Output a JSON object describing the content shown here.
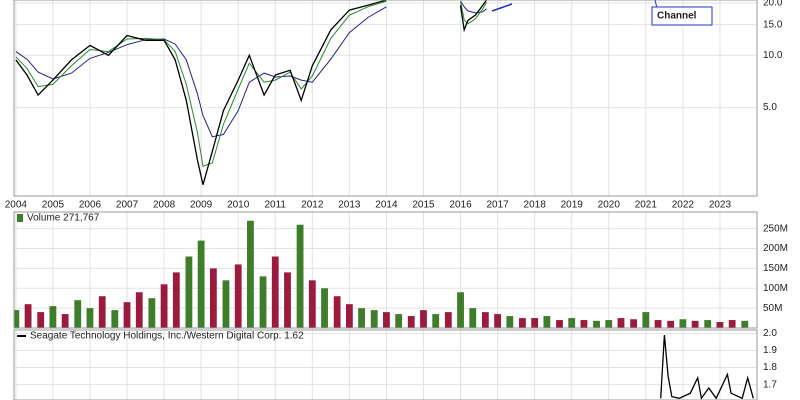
{
  "chart_data": [
    {
      "type": "line",
      "log": true,
      "grid": true,
      "annotation": "Channel",
      "xlim": [
        2003.95,
        2024.0
      ],
      "xticks": [
        2004,
        2005,
        2006,
        2007,
        2008,
        2009,
        2010,
        2011,
        2012,
        2013,
        2014,
        2015,
        2016,
        2017,
        2018,
        2019,
        2020,
        2021,
        2022,
        2023
      ],
      "ylim": [
        1.55,
        20.8
      ],
      "yticks": [
        {
          "value": 5,
          "label": "5.0"
        },
        {
          "value": 10,
          "label": "10.0"
        },
        {
          "value": 15,
          "label": "15.0"
        },
        {
          "value": 20,
          "label": "20.0"
        }
      ],
      "x": [
        2004.0,
        2004.3,
        2004.6,
        2005.0,
        2005.5,
        2006.0,
        2006.5,
        2007.0,
        2007.5,
        2008.0,
        2008.3,
        2008.6,
        2008.9,
        2009.05,
        2009.3,
        2009.6,
        2010.0,
        2010.3,
        2010.7,
        2011.0,
        2011.4,
        2011.7,
        2012.0,
        2012.5,
        2013.0,
        2013.5,
        2014.0,
        2015.0,
        2016.0,
        2016.1,
        2016.2,
        2016.4,
        2016.6,
        2016.7
      ],
      "series": [
        {
          "color": "#23238e",
          "values": [
            10.5,
            9.5,
            8,
            7.3,
            7.9,
            9.6,
            10.4,
            11.5,
            12.3,
            12.4,
            11.6,
            9.4,
            6,
            4.5,
            3.4,
            3.5,
            4.8,
            7,
            7.9,
            7.5,
            7.6,
            7.2,
            7.0,
            9.5,
            13.5,
            16.5,
            19,
            null,
            20.5,
            19,
            18,
            17.5,
            17.8,
            18.5
          ]
        },
        {
          "color": "#2a8a2a",
          "values": [
            9.8,
            8.4,
            6.6,
            6.8,
            8.7,
            10.8,
            10.5,
            12.4,
            12.5,
            12.3,
            10.5,
            6.8,
            3.6,
            2.3,
            2.4,
            4.0,
            6.4,
            9.0,
            7.0,
            7.2,
            8.0,
            6.4,
            7.6,
            12.5,
            17,
            19,
            20.5,
            null,
            20.5,
            16,
            15.2,
            16.2,
            18.5,
            20.2
          ]
        },
        {
          "color": "#000000",
          "values": [
            9.4,
            7.7,
            5.9,
            7.2,
            9.4,
            11.4,
            10,
            13,
            12.2,
            12.2,
            9.4,
            5.5,
            2.5,
            1.8,
            2.8,
            4.8,
            7.2,
            10,
            5.9,
            7.7,
            8.2,
            5.5,
            8.7,
            14,
            18.2,
            19.4,
            20.8,
            null,
            19.4,
            14,
            15.9,
            17,
            19.4,
            20.8
          ]
        }
      ]
    },
    {
      "type": "bar",
      "title": "Volume 271,767",
      "grid": true,
      "xlim": [
        2003.95,
        2024.0
      ],
      "ylim": [
        0,
        292000000
      ],
      "yticks": [
        {
          "value": 50000000,
          "label": "50M"
        },
        {
          "value": 100000000,
          "label": "100M"
        },
        {
          "value": 150000000,
          "label": "150M"
        },
        {
          "value": 200000000,
          "label": "200M"
        },
        {
          "value": 250000000,
          "label": "250M"
        }
      ],
      "x": [
        2004.0,
        2004.33,
        2004.67,
        2005.0,
        2005.33,
        2005.67,
        2006.0,
        2006.33,
        2006.67,
        2007.0,
        2007.33,
        2007.67,
        2008.0,
        2008.33,
        2008.67,
        2009.0,
        2009.33,
        2009.67,
        2010.0,
        2010.33,
        2010.67,
        2011.0,
        2011.33,
        2011.67,
        2012.0,
        2012.33,
        2012.67,
        2013.0,
        2013.33,
        2013.67,
        2014.0,
        2014.33,
        2014.67,
        2015.0,
        2015.33,
        2015.67,
        2016.0,
        2016.33,
        2016.67,
        2017.0,
        2017.33,
        2017.67,
        2018.0,
        2018.33,
        2018.67,
        2019.0,
        2019.33,
        2019.67,
        2020.0,
        2020.33,
        2020.67,
        2021.0,
        2021.33,
        2021.67,
        2022.0,
        2022.33,
        2022.67,
        2023.0,
        2023.33,
        2023.67
      ],
      "values": [
        45000000,
        60000000,
        40000000,
        55000000,
        35000000,
        70000000,
        50000000,
        80000000,
        45000000,
        65000000,
        90000000,
        75000000,
        110000000,
        140000000,
        180000000,
        220000000,
        150000000,
        120000000,
        160000000,
        270000000,
        130000000,
        180000000,
        140000000,
        260000000,
        120000000,
        100000000,
        80000000,
        60000000,
        50000000,
        45000000,
        40000000,
        35000000,
        30000000,
        45000000,
        35000000,
        40000000,
        90000000,
        50000000,
        40000000,
        35000000,
        30000000,
        25000000,
        25000000,
        30000000,
        20000000,
        25000000,
        20000000,
        18000000,
        20000000,
        25000000,
        22000000,
        40000000,
        20000000,
        18000000,
        22000000,
        18000000,
        20000000,
        15000000,
        20000000,
        18000000
      ],
      "colors": [
        "#3e7d2a",
        "#9b1b3f",
        "#9b1b3f",
        "#3e7d2a",
        "#9b1b3f",
        "#3e7d2a",
        "#3e7d2a",
        "#9b1b3f",
        "#3e7d2a",
        "#9b1b3f",
        "#9b1b3f",
        "#3e7d2a",
        "#9b1b3f",
        "#9b1b3f",
        "#3e7d2a",
        "#3e7d2a",
        "#9b1b3f",
        "#3e7d2a",
        "#9b1b3f",
        "#3e7d2a",
        "#3e7d2a",
        "#9b1b3f",
        "#9b1b3f",
        "#3e7d2a",
        "#9b1b3f",
        "#3e7d2a",
        "#9b1b3f",
        "#9b1b3f",
        "#3e7d2a",
        "#3e7d2a",
        "#9b1b3f",
        "#3e7d2a",
        "#9b1b3f",
        "#9b1b3f",
        "#3e7d2a",
        "#9b1b3f",
        "#3e7d2a",
        "#3e7d2a",
        "#9b1b3f",
        "#9b1b3f",
        "#3e7d2a",
        "#9b1b3f",
        "#9b1b3f",
        "#3e7d2a",
        "#9b1b3f",
        "#3e7d2a",
        "#9b1b3f",
        "#3e7d2a",
        "#3e7d2a",
        "#9b1b3f",
        "#9b1b3f",
        "#3e7d2a",
        "#9b1b3f",
        "#9b1b3f",
        "#3e7d2a",
        "#9b1b3f",
        "#3e7d2a",
        "#9b1b3f",
        "#9b1b3f",
        "#3e7d2a"
      ]
    },
    {
      "type": "line",
      "title": "Seagate Technology Holdings, Inc./Western Digital Corp. 1.62",
      "grid": true,
      "xlim": [
        2003.95,
        2024.0
      ],
      "ylim": [
        1.61,
        2.02
      ],
      "yticks": [
        1.7,
        1.8,
        1.9,
        {
          "value": 2,
          "label": "2.0"
        }
      ],
      "x": [
        2021.4,
        2021.5,
        2021.6,
        2021.7,
        2021.9,
        2022.2,
        2022.4,
        2022.5,
        2022.7,
        2022.9,
        2023.2,
        2023.3,
        2023.6,
        2023.75,
        2023.9
      ],
      "series": [
        {
          "color": "#000000",
          "values": [
            1.62,
            1.99,
            1.75,
            1.63,
            1.62,
            1.65,
            1.74,
            1.62,
            1.68,
            1.62,
            1.76,
            1.65,
            1.62,
            1.74,
            1.62
          ]
        }
      ]
    }
  ]
}
